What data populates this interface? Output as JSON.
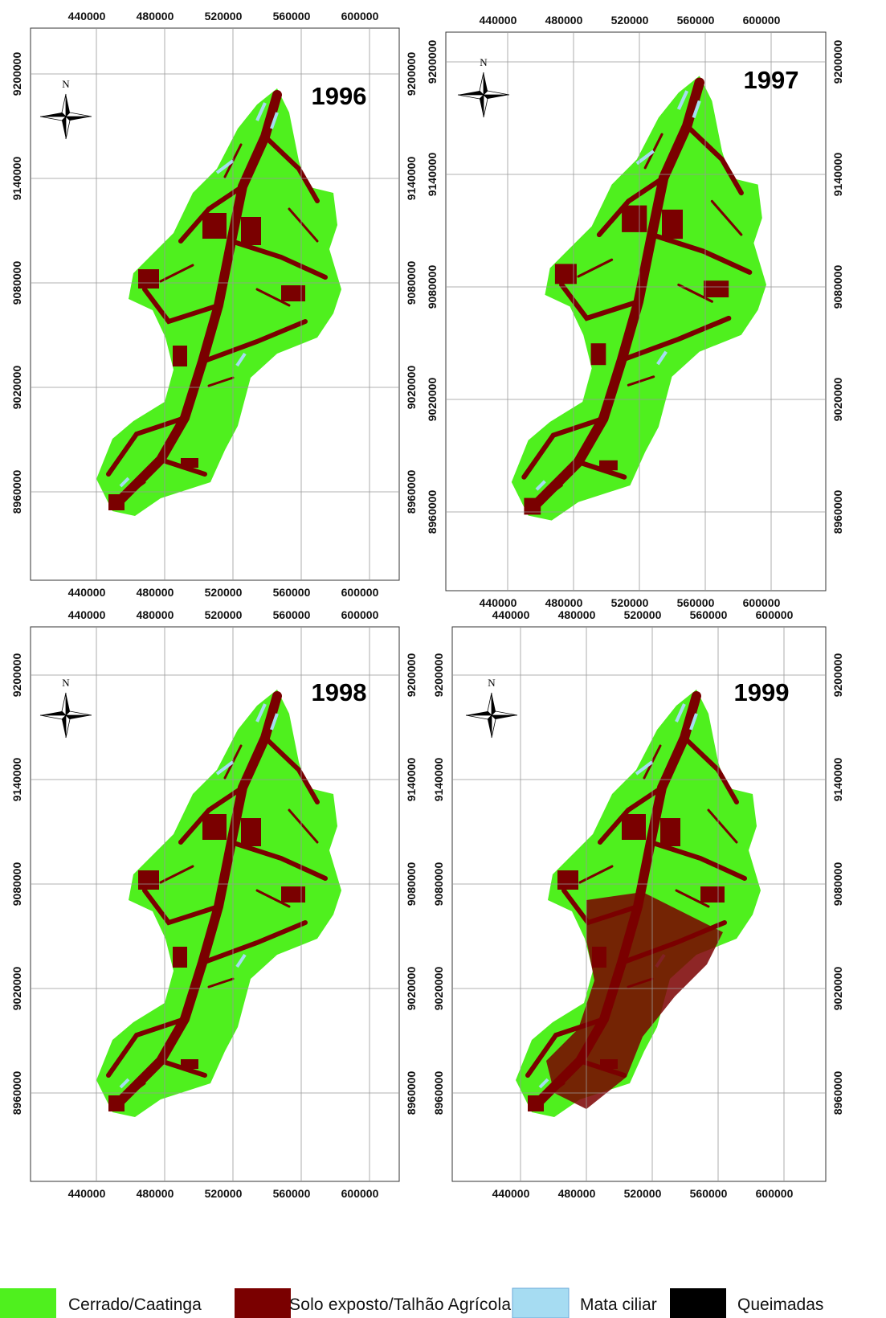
{
  "panels": [
    {
      "year": "1996"
    },
    {
      "year": "1997"
    },
    {
      "year": "1998"
    },
    {
      "year": "1999"
    }
  ],
  "x_ticks": [
    440000,
    480000,
    520000,
    560000,
    600000
  ],
  "y_ticks": [
    9200000,
    9140000,
    9080000,
    9020000,
    8960000
  ],
  "north": "N",
  "legend": [
    {
      "label": "Cerrado/Caatinga",
      "color": "#4ff01e"
    },
    {
      "label": "Solo exposto/Talhão Agrícola",
      "color": "#7a0000"
    },
    {
      "label": "Mata ciliar",
      "color": "#a6dcf2"
    },
    {
      "label": "Queimadas",
      "color": "#000000"
    }
  ]
}
